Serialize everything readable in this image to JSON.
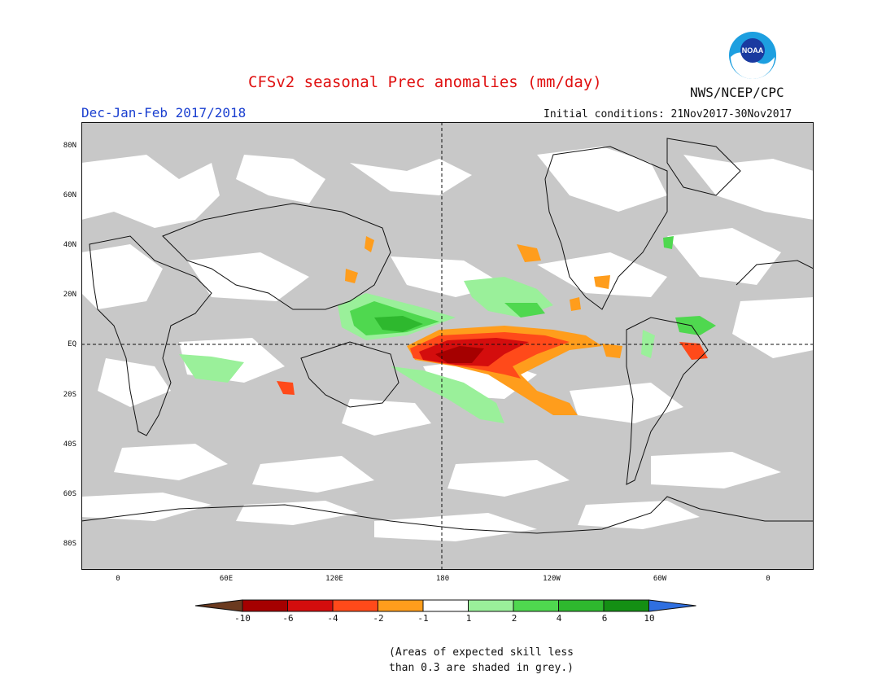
{
  "title": "CFSv2 seasonal Prec anomalies (mm/day)",
  "season": "Dec-Jan-Feb 2017/2018",
  "initial_conditions": "Initial conditions: 21Nov2017-30Nov2017",
  "organization": "NWS/NCEP/CPC",
  "logo_text": "NOAA",
  "lat_labels": [
    "80N",
    "60N",
    "40N",
    "20N",
    "EQ",
    "20S",
    "40S",
    "60S",
    "80S"
  ],
  "lon_labels": [
    "0",
    "60E",
    "120E",
    "180",
    "120W",
    "60W",
    "0"
  ],
  "colorbar": {
    "labels": [
      "-10",
      "-6",
      "-4",
      "-2",
      "-1",
      "1",
      "2",
      "4",
      "6",
      "10"
    ],
    "colors": [
      "#6b3a1f",
      "#a50000",
      "#d40d0d",
      "#ff4a1a",
      "#ff9d1c",
      "#ffffff",
      "#9af09a",
      "#4fd84f",
      "#2eb82e",
      "#148f14",
      "#2f6fe0"
    ]
  },
  "skill_note_line1": "(Areas of expected skill less",
  "skill_note_line2": "than 0.3 are shaded in grey.)",
  "colors": {
    "grey_mask": "#c8c8c8",
    "title": "#e01010",
    "season": "#1a3fd0"
  }
}
